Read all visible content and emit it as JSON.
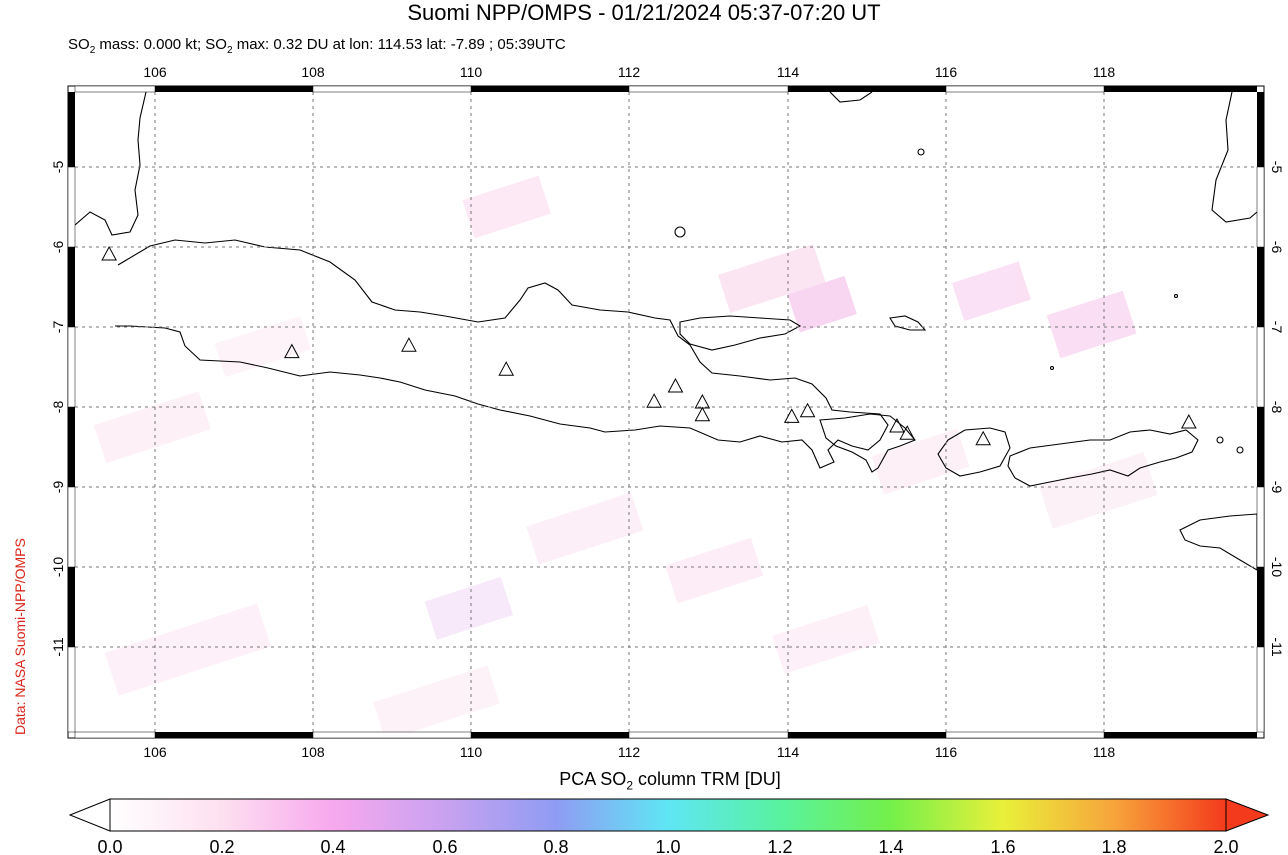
{
  "title": "Suomi NPP/OMPS - 01/21/2024 05:37-07:20 UT",
  "subtitle": {
    "prefix": "SO",
    "sub1": "2",
    "mid": " mass: 0.000 kt; SO",
    "sub2": "2",
    "suffix": " max: 0.32 DU at lon: 114.53 lat: -7.89 ; 05:39UTC"
  },
  "credit": "Data: NASA Suomi-NPP/OMPS",
  "colorbar": {
    "label_prefix": "PCA SO",
    "label_sub": "2",
    "label_suffix": " column TRM [DU]",
    "ticks": [
      "0.0",
      "0.2",
      "0.4",
      "0.6",
      "0.8",
      "1.0",
      "1.2",
      "1.4",
      "1.6",
      "1.8",
      "2.0"
    ],
    "colors": [
      "#ffffff",
      "#fde0f0",
      "#f7a8ee",
      "#c8a2f0",
      "#8f9cf3",
      "#5fe6f4",
      "#58f2a0",
      "#74f04a",
      "#e9f03a",
      "#f7a43b",
      "#f43a1c"
    ]
  },
  "map": {
    "lon_range": [
      104.9,
      120.0
    ],
    "lat_range": [
      -12.0,
      -4.0
    ],
    "lon_ticks": [
      "106",
      "108",
      "110",
      "112",
      "114",
      "116",
      "118"
    ],
    "lat_ticks": [
      "-5",
      "-6",
      "-7",
      "-8",
      "-9",
      "-10",
      "-11"
    ],
    "volcanoes": [
      {
        "lon": 105.42,
        "lat": -6.1
      },
      {
        "lon": 107.73,
        "lat": -7.32
      },
      {
        "lon": 109.21,
        "lat": -7.24
      },
      {
        "lon": 110.44,
        "lat": -7.54
      },
      {
        "lon": 112.31,
        "lat": -7.94
      },
      {
        "lon": 112.58,
        "lat": -7.75
      },
      {
        "lon": 112.92,
        "lat": -7.95
      },
      {
        "lon": 112.92,
        "lat": -8.11
      },
      {
        "lon": 114.05,
        "lat": -8.13
      },
      {
        "lon": 114.25,
        "lat": -8.06
      },
      {
        "lon": 115.38,
        "lat": -8.25
      },
      {
        "lon": 115.51,
        "lat": -8.34
      },
      {
        "lon": 116.47,
        "lat": -8.41
      },
      {
        "lon": 119.07,
        "lat": -8.2
      }
    ]
  }
}
